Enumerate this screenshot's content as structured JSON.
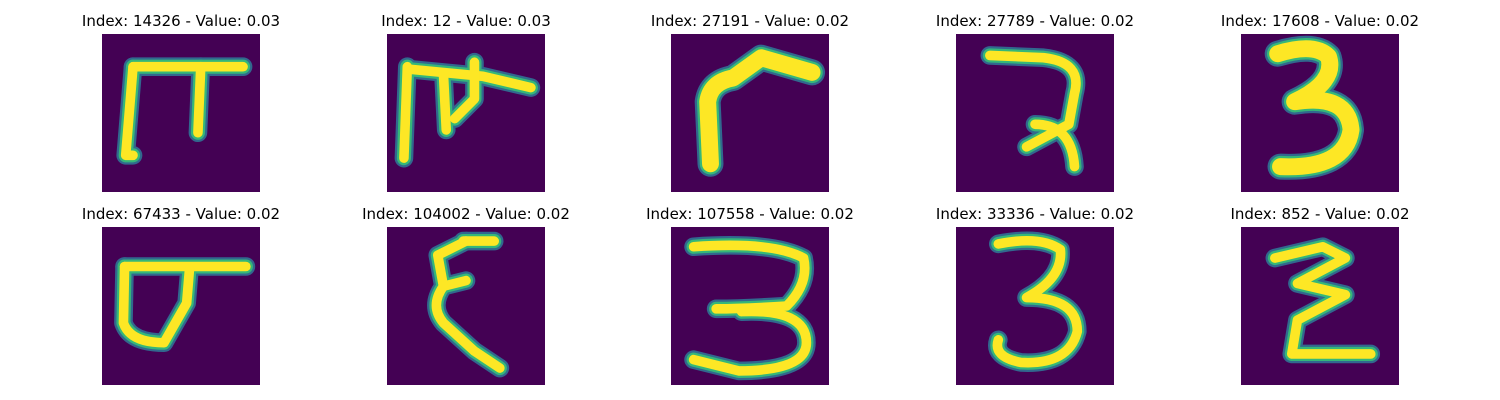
{
  "colors": {
    "background": "#440154",
    "stroke_core": "#fde725",
    "stroke_edge": "#35b779",
    "stroke_halo": "#31688e"
  },
  "panels": [
    {
      "title": "Index: 14326 - Value: 0.03",
      "glyph": "glyph-1"
    },
    {
      "title": "Index: 12 - Value: 0.03",
      "glyph": "glyph-2"
    },
    {
      "title": "Index: 27191 - Value: 0.02",
      "glyph": "glyph-3"
    },
    {
      "title": "Index: 27789 - Value: 0.02",
      "glyph": "glyph-4"
    },
    {
      "title": "Index: 17608 - Value: 0.02",
      "glyph": "glyph-5"
    },
    {
      "title": "Index: 67433 - Value: 0.02",
      "glyph": "glyph-6"
    },
    {
      "title": "Index: 104002 - Value: 0.02",
      "glyph": "glyph-7"
    },
    {
      "title": "Index: 107558 - Value: 0.02",
      "glyph": "glyph-8"
    },
    {
      "title": "Index: 33336 - Value: 0.02",
      "glyph": "glyph-9"
    },
    {
      "title": "Index: 852 - Value: 0.02",
      "glyph": "glyph-10"
    }
  ]
}
